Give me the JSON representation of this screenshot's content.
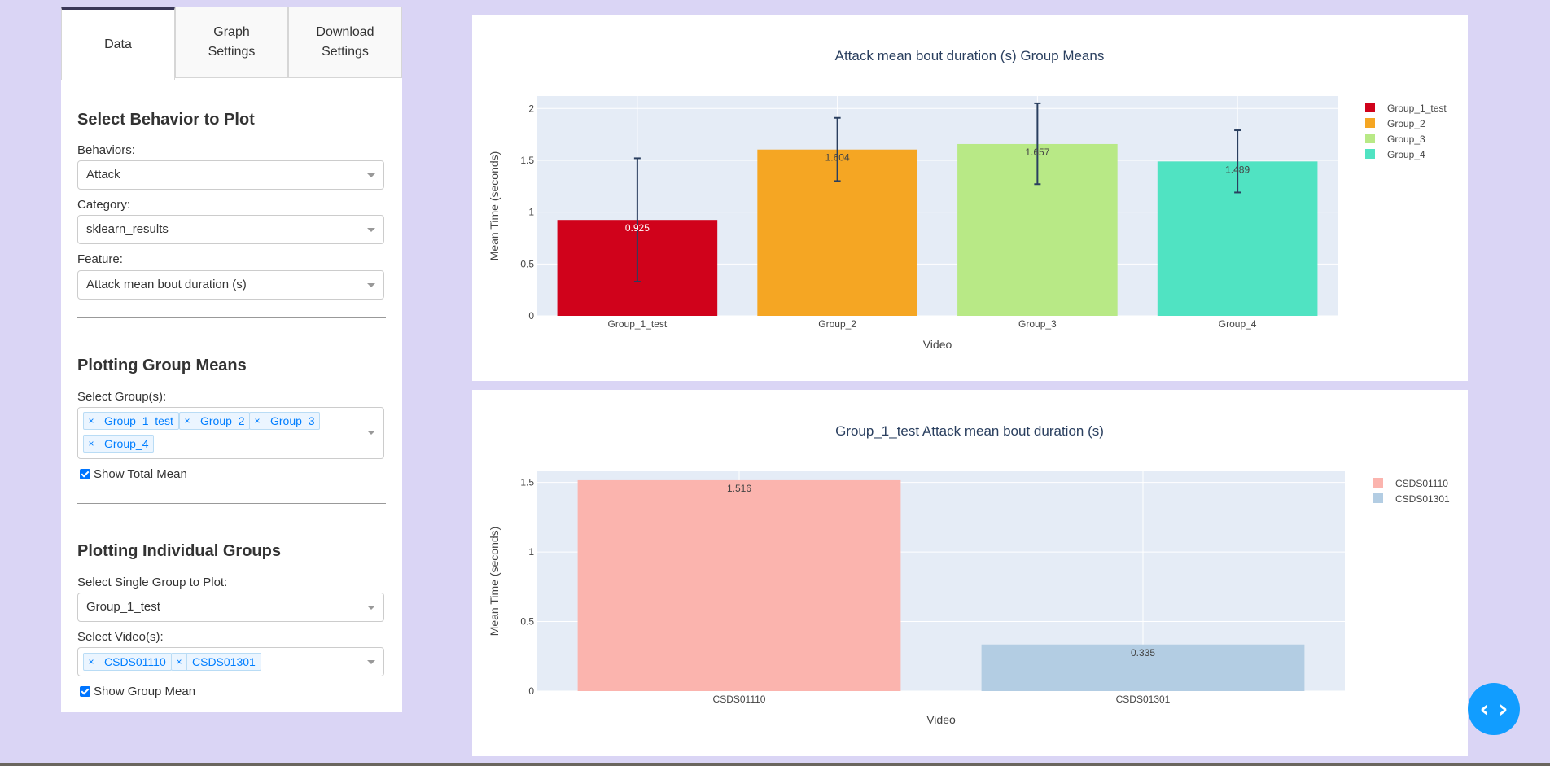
{
  "tabs": [
    {
      "label_line1": "Data",
      "label_line2": ""
    },
    {
      "label_line1": "Graph",
      "label_line2": "Settings"
    },
    {
      "label_line1": "Download",
      "label_line2": "Settings"
    }
  ],
  "behavior_section": {
    "title": "Select Behavior to Plot",
    "behaviors_label": "Behaviors:",
    "behaviors_value": "Attack",
    "category_label": "Category:",
    "category_value": "sklearn_results",
    "feature_label": "Feature:",
    "feature_value": "Attack mean bout duration (s)"
  },
  "group_means_section": {
    "title": "Plotting Group Means",
    "groups_label": "Select Group(s):",
    "groups": [
      "Group_1_test",
      "Group_2",
      "Group_3",
      "Group_4"
    ],
    "show_total_mean_label": "Show Total Mean"
  },
  "individual_section": {
    "title": "Plotting Individual Groups",
    "single_group_label": "Select Single Group to Plot:",
    "single_group_value": "Group_1_test",
    "videos_label": "Select Video(s):",
    "videos": [
      "CSDS01110",
      "CSDS01301"
    ],
    "show_group_mean_label": "Show Group Mean"
  },
  "fab_icon": "code-brackets-icon",
  "chart_data": [
    {
      "type": "bar",
      "title": "Attack mean bout duration (s) Group Means",
      "xlabel": "Video",
      "ylabel": "Mean Time (seconds)",
      "categories": [
        "Group_1_test",
        "Group_2",
        "Group_3",
        "Group_4"
      ],
      "values": [
        0.925,
        1.604,
        1.657,
        1.489
      ],
      "value_labels": [
        "0.925",
        "1.604",
        "1.657",
        "1.489"
      ],
      "error_low": [
        0.33,
        1.3,
        1.27,
        1.19
      ],
      "error_high": [
        1.52,
        1.91,
        2.05,
        1.79
      ],
      "colors": [
        "#d0021b",
        "#f5a623",
        "#b8e986",
        "#50e3c2"
      ],
      "legend": [
        "Group_1_test",
        "Group_2",
        "Group_3",
        "Group_4"
      ],
      "legend_position": "top-right",
      "yticks": [
        "0",
        "0.5",
        "1",
        "1.5",
        "2"
      ],
      "ylim": [
        0,
        2.12
      ],
      "grid": true
    },
    {
      "type": "bar",
      "title": "Group_1_test Attack mean bout duration (s)",
      "xlabel": "Video",
      "ylabel": "Mean Time (seconds)",
      "categories": [
        "CSDS01110",
        "CSDS01301"
      ],
      "values": [
        1.516,
        0.335
      ],
      "value_labels": [
        "1.516",
        "0.335"
      ],
      "colors": [
        "#fbb4ae",
        "#b3cde3"
      ],
      "legend": [
        "CSDS01110",
        "CSDS01301"
      ],
      "legend_position": "top-right",
      "yticks": [
        "0",
        "0.5",
        "1",
        "1.5"
      ],
      "ylim": [
        0,
        1.58
      ],
      "grid": true
    }
  ]
}
